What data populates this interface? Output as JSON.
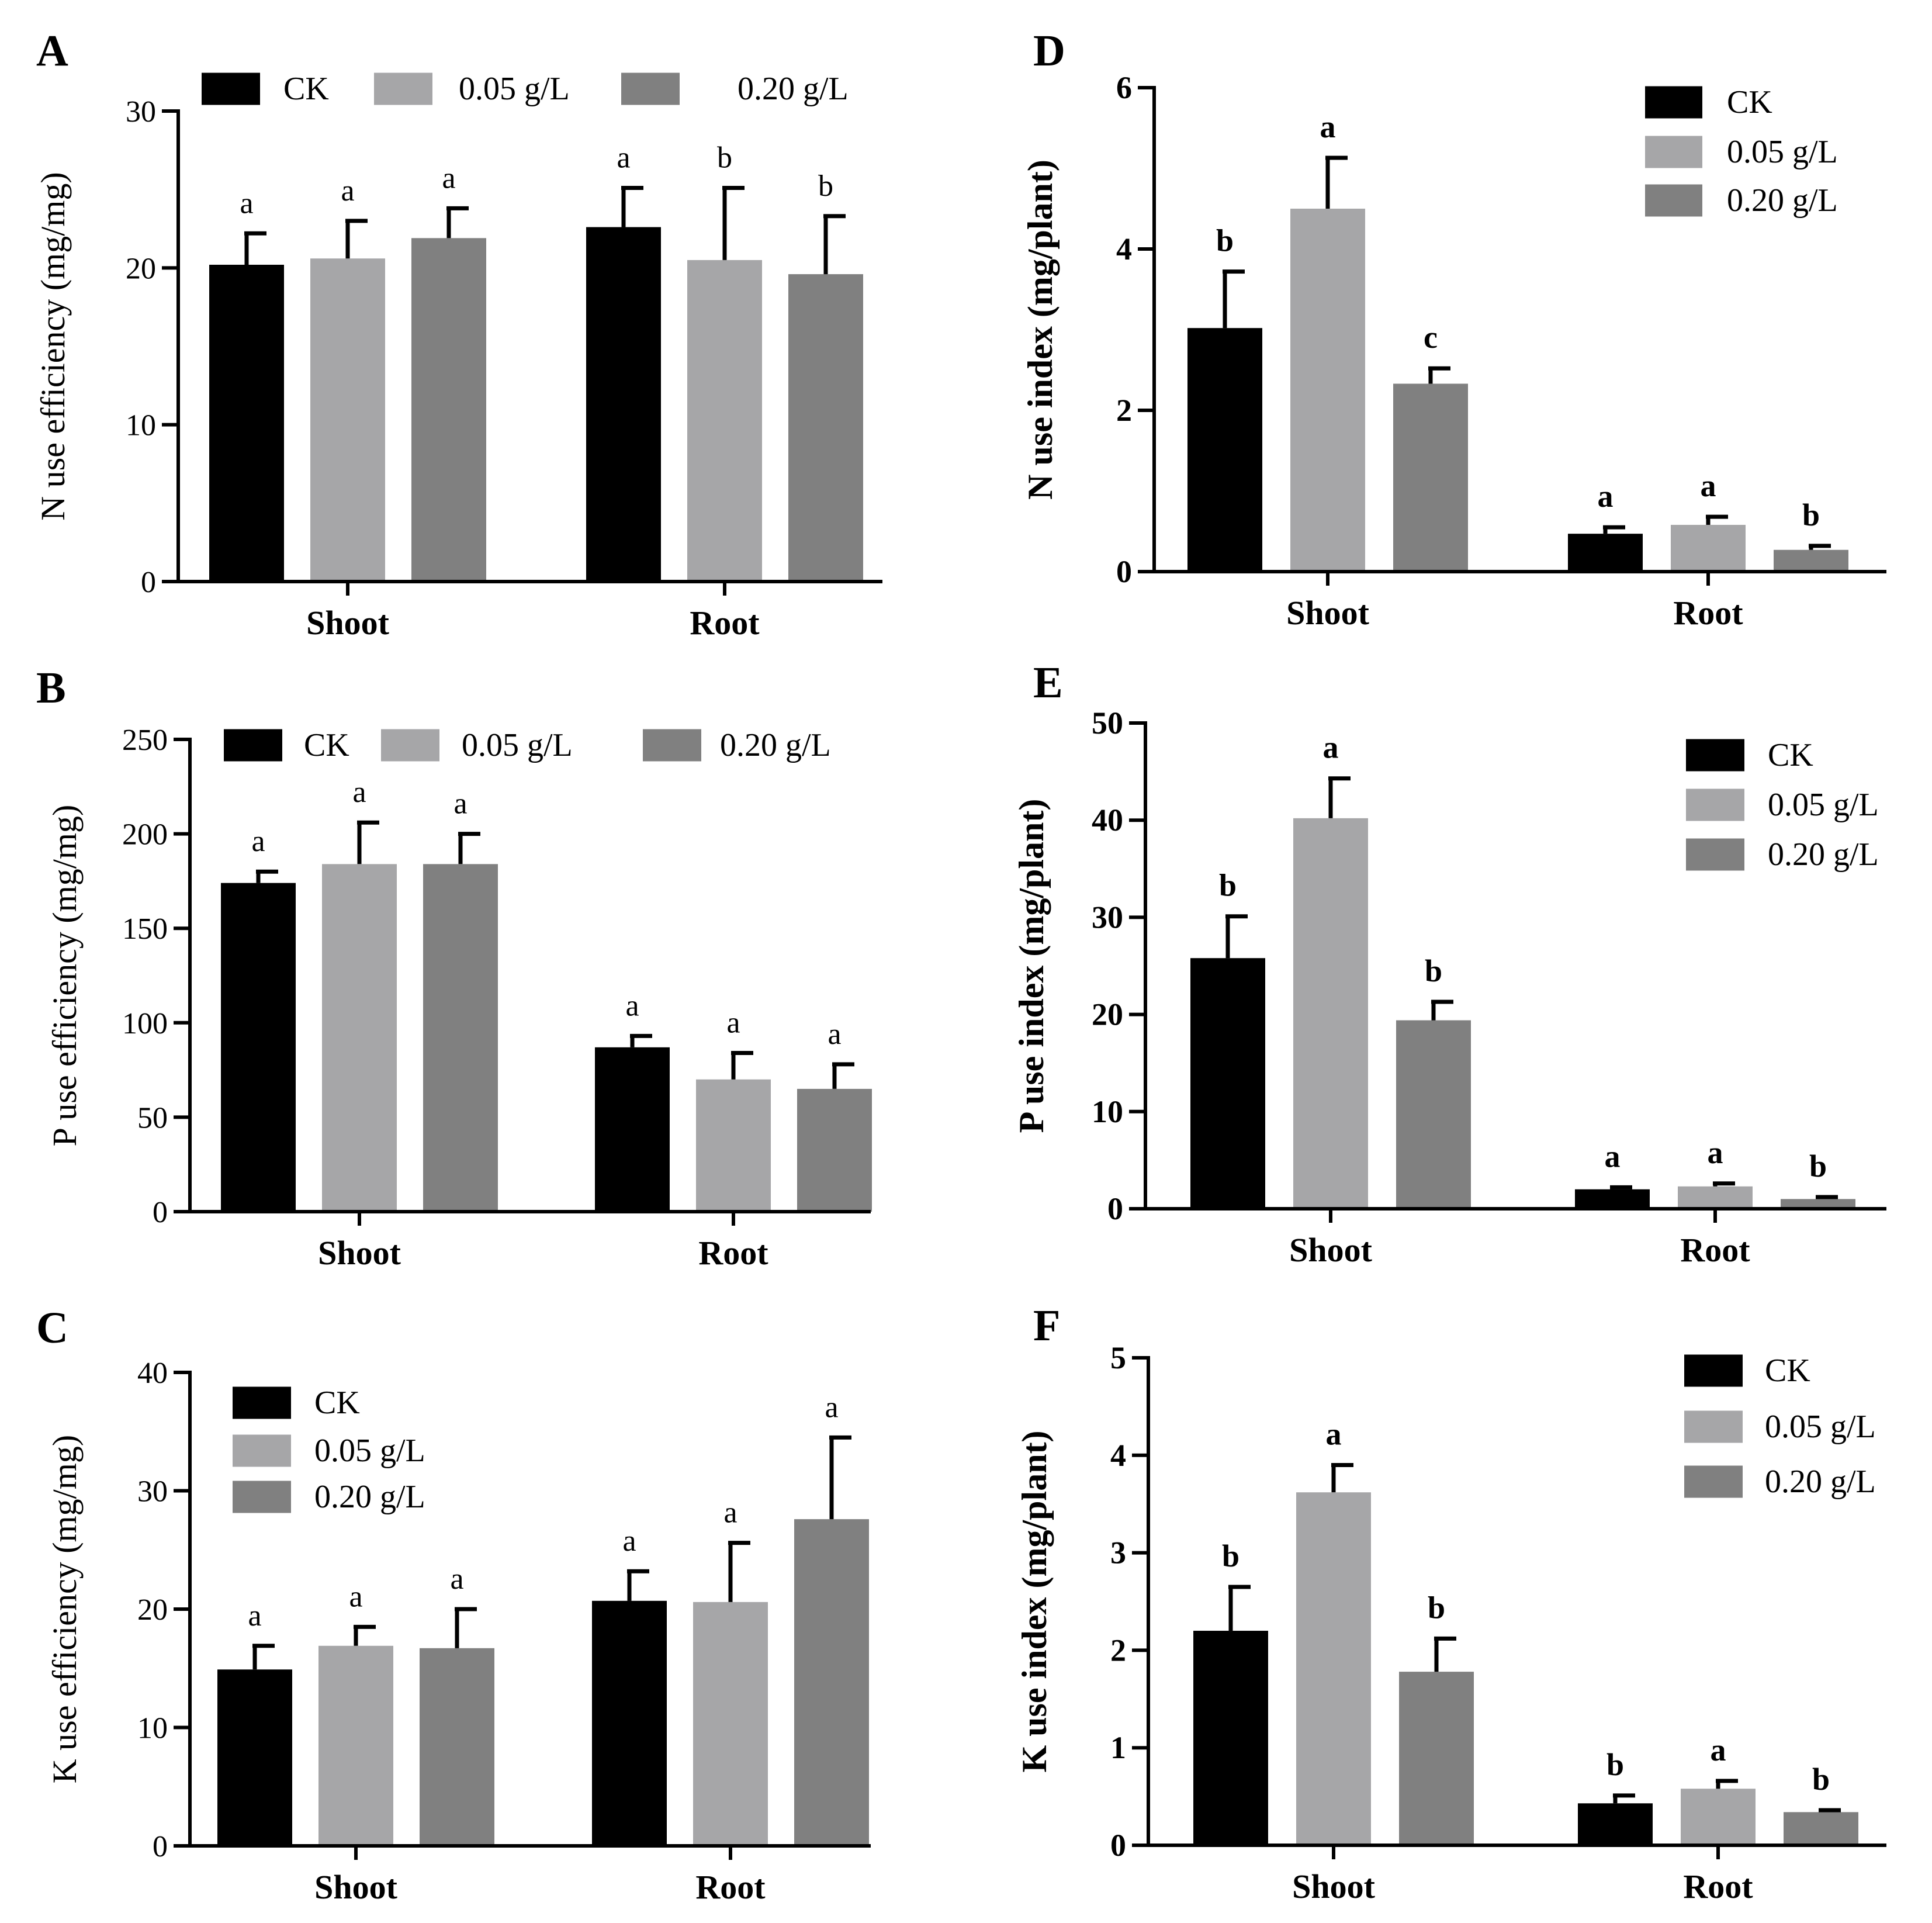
{
  "figure": {
    "bar_colors": [
      "#000000",
      "#a6a6a8",
      "#808080"
    ]
  },
  "chart_data": [
    {
      "panel": "A",
      "type": "bar",
      "ylabel": "N use efficiency (mg/mg)",
      "ylim": [
        0,
        30
      ],
      "yticks": [
        0,
        10,
        20,
        30
      ],
      "categories": [
        "Shoot",
        "Root"
      ],
      "legend": [
        "CK",
        "0.05 g/L",
        "0.20 g/L"
      ],
      "legend_position": "top",
      "series": [
        {
          "name": "CK",
          "values": [
            20.2,
            22.6
          ],
          "errors": [
            2.0,
            2.5
          ],
          "letters": [
            "a",
            "a"
          ]
        },
        {
          "name": "0.05 g/L",
          "values": [
            20.6,
            20.5
          ],
          "errors": [
            2.4,
            4.6
          ],
          "letters": [
            "a",
            "b"
          ]
        },
        {
          "name": "0.20 g/L",
          "values": [
            21.9,
            19.6
          ],
          "errors": [
            1.9,
            3.7
          ],
          "letters": [
            "a",
            "b"
          ]
        }
      ]
    },
    {
      "panel": "B",
      "type": "bar",
      "ylabel": "P use efficiency (mg/mg)",
      "ylim": [
        0,
        250
      ],
      "yticks": [
        0,
        50,
        100,
        150,
        200,
        250
      ],
      "categories": [
        "Shoot",
        "Root"
      ],
      "legend": [
        "CK",
        "0.05 g/L",
        "0.20 g/L"
      ],
      "legend_position": "top",
      "series": [
        {
          "name": "CK",
          "values": [
            174,
            87
          ],
          "errors": [
            6,
            6
          ],
          "letters": [
            "a",
            "a"
          ]
        },
        {
          "name": "0.05 g/L",
          "values": [
            184,
            70
          ],
          "errors": [
            22,
            14
          ],
          "letters": [
            "a",
            "a"
          ]
        },
        {
          "name": "0.20 g/L",
          "values": [
            184,
            65
          ],
          "errors": [
            16,
            13
          ],
          "letters": [
            "a",
            "a"
          ]
        }
      ]
    },
    {
      "panel": "C",
      "type": "bar",
      "ylabel": "K use efficiency (mg/mg)",
      "ylim": [
        0,
        40
      ],
      "yticks": [
        0,
        10,
        20,
        30,
        40
      ],
      "categories": [
        "Shoot",
        "Root"
      ],
      "legend": [
        "CK",
        "0.05 g/L",
        "0.20 g/L"
      ],
      "legend_position": "top-left",
      "series": [
        {
          "name": "CK",
          "values": [
            14.9,
            20.7
          ],
          "errors": [
            2.0,
            2.5
          ],
          "letters": [
            "a",
            "a"
          ]
        },
        {
          "name": "0.05 g/L",
          "values": [
            16.9,
            20.6
          ],
          "errors": [
            1.6,
            5.0
          ],
          "letters": [
            "a",
            "a"
          ]
        },
        {
          "name": "0.20 g/L",
          "values": [
            16.7,
            27.6
          ],
          "errors": [
            3.3,
            6.9
          ],
          "letters": [
            "a",
            "a"
          ]
        }
      ]
    },
    {
      "panel": "D",
      "type": "bar",
      "ylabel": "N use index (mg/plant)",
      "ylim": [
        0,
        6
      ],
      "yticks": [
        0,
        2,
        4,
        6
      ],
      "categories": [
        "Shoot",
        "Root"
      ],
      "legend": [
        "CK",
        "0.05 g/L",
        "0.20 g/L"
      ],
      "legend_position": "top-right",
      "series": [
        {
          "name": "CK",
          "values": [
            3.02,
            0.47
          ],
          "errors": [
            0.7,
            0.08
          ],
          "letters": [
            "b",
            "a"
          ]
        },
        {
          "name": "0.05 g/L",
          "values": [
            4.5,
            0.58
          ],
          "errors": [
            0.63,
            0.1
          ],
          "letters": [
            "a",
            "a"
          ]
        },
        {
          "name": "0.20 g/L",
          "values": [
            2.33,
            0.27
          ],
          "errors": [
            0.19,
            0.05
          ],
          "letters": [
            "c",
            "b"
          ]
        }
      ]
    },
    {
      "panel": "E",
      "type": "bar",
      "ylabel": "P use index (mg/plant)",
      "ylim": [
        0,
        50
      ],
      "yticks": [
        0,
        10,
        20,
        30,
        40,
        50
      ],
      "categories": [
        "Shoot",
        "Root"
      ],
      "legend": [
        "CK",
        "0.05 g/L",
        "0.20 g/L"
      ],
      "legend_position": "top-right",
      "series": [
        {
          "name": "CK",
          "values": [
            25.8,
            2.0
          ],
          "errors": [
            4.3,
            0.2
          ],
          "letters": [
            "b",
            "a"
          ]
        },
        {
          "name": "0.05 g/L",
          "values": [
            40.2,
            2.3
          ],
          "errors": [
            4.1,
            0.3
          ],
          "letters": [
            "a",
            "a"
          ]
        },
        {
          "name": "0.20 g/L",
          "values": [
            19.4,
            1.0
          ],
          "errors": [
            1.9,
            0.2
          ],
          "letters": [
            "b",
            "b"
          ]
        }
      ]
    },
    {
      "panel": "F",
      "type": "bar",
      "ylabel": "K use index (mg/plant)",
      "ylim": [
        0,
        5
      ],
      "yticks": [
        0,
        1,
        2,
        3,
        4,
        5
      ],
      "categories": [
        "Shoot",
        "Root"
      ],
      "legend": [
        "CK",
        "0.05 g/L",
        "0.20 g/L"
      ],
      "legend_position": "top-right",
      "series": [
        {
          "name": "CK",
          "values": [
            2.2,
            0.43
          ],
          "errors": [
            0.45,
            0.08
          ],
          "letters": [
            "b",
            "b"
          ]
        },
        {
          "name": "0.05 g/L",
          "values": [
            3.62,
            0.58
          ],
          "errors": [
            0.28,
            0.08
          ],
          "letters": [
            "a",
            "a"
          ]
        },
        {
          "name": "0.20 g/L",
          "values": [
            1.78,
            0.34
          ],
          "errors": [
            0.34,
            0.02
          ],
          "letters": [
            "b",
            "b"
          ]
        }
      ]
    }
  ]
}
